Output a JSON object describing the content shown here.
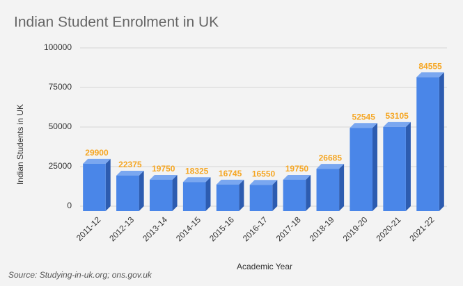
{
  "chart_data": {
    "type": "bar3d",
    "title": "Indian Student Enrolment in UK",
    "x_label": "Academic Year",
    "y_label": "Indian Students in UK",
    "source": "Source: Studying-in-uk.org; ons.gov.uk",
    "categories": [
      "2011-12",
      "2012-13",
      "2013-14",
      "2014-15",
      "2015-16",
      "2016-17",
      "2017-18",
      "2018-19",
      "2019-20",
      "2020-21",
      "2021-22"
    ],
    "values": [
      29900,
      22375,
      19750,
      18325,
      16745,
      16550,
      19750,
      26685,
      52545,
      53105,
      84555
    ],
    "color": "#4a86e8",
    "label_color": "#f5a623",
    "ylim": [
      0,
      100000
    ],
    "yticks": [
      0,
      25000,
      50000,
      75000,
      100000
    ],
    "grid": true
  }
}
